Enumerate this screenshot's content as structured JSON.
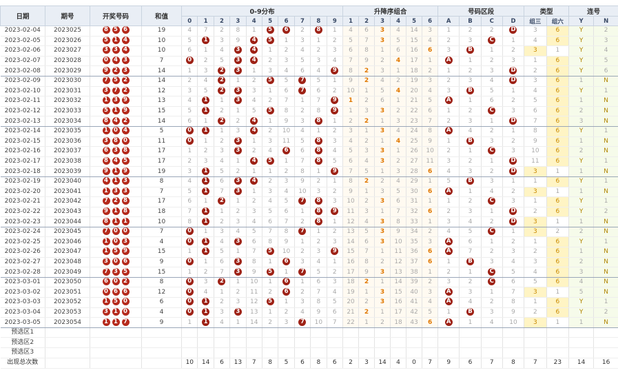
{
  "header": {
    "date": "日期",
    "issue": "期号",
    "balls": "开奖号码",
    "sum": "和值",
    "digits_group": "0-9分布",
    "order_group": "升降序组合",
    "zone_group": "号码区段",
    "type_group": "类型",
    "consec_group": "连号",
    "digit_cols": [
      "0",
      "1",
      "2",
      "3",
      "4",
      "5",
      "6",
      "7",
      "8",
      "9"
    ],
    "order_cols": [
      "1",
      "2",
      "3",
      "4",
      "5",
      "6"
    ],
    "zone_cols": [
      "A",
      "B",
      "C",
      "D"
    ],
    "type_cols": [
      "组三",
      "组六"
    ],
    "consec_cols": [
      "Y",
      "N"
    ]
  },
  "rows": [
    {
      "date": "2023-02-04",
      "issue": "2023025",
      "balls": [
        8,
        5,
        6
      ],
      "sum": 19,
      "digits": [
        4,
        7,
        2,
        8,
        1,
        "5",
        "6",
        2,
        "8",
        1
      ],
      "order": [
        4,
        6,
        "3",
        4,
        14,
        3
      ],
      "zone": [
        1,
        2,
        2,
        "D"
      ],
      "type": [
        3,
        "6"
      ],
      "consec": [
        "Y",
        2
      ]
    },
    {
      "date": "2023-02-05",
      "issue": "2023026",
      "balls": [
        5,
        1,
        4
      ],
      "sum": 10,
      "digits": [
        5,
        "1",
        3,
        9,
        "4",
        "5",
        1,
        3,
        1,
        2
      ],
      "order": [
        5,
        7,
        "3",
        5,
        15,
        4
      ],
      "zone": [
        2,
        3,
        "C",
        1
      ],
      "type": [
        4,
        "6"
      ],
      "consec": [
        "Y",
        3
      ]
    },
    {
      "date": "2023-02-06",
      "issue": "2023027",
      "balls": [
        3,
        3,
        4
      ],
      "sum": 10,
      "digits": [
        6,
        1,
        4,
        "3",
        "4",
        1,
        2,
        4,
        2,
        3
      ],
      "order": [
        6,
        8,
        1,
        6,
        16,
        "6"
      ],
      "zone": [
        3,
        "B",
        1,
        2
      ],
      "type": [
        "3",
        1
      ],
      "consec": [
        "Y",
        4
      ]
    },
    {
      "date": "2023-02-07",
      "issue": "2023028",
      "balls": [
        0,
        4,
        3
      ],
      "sum": 7,
      "digits": [
        "0",
        2,
        5,
        "3",
        "4",
        2,
        3,
        5,
        3,
        4
      ],
      "order": [
        7,
        9,
        2,
        "4",
        17,
        1
      ],
      "zone": [
        "A",
        1,
        2,
        3
      ],
      "type": [
        1,
        "6"
      ],
      "consec": [
        "Y",
        5
      ]
    },
    {
      "date": "2023-02-08",
      "issue": "2023029",
      "balls": [
        9,
        2,
        3
      ],
      "sum": 14,
      "digits": [
        1,
        3,
        "2",
        "3",
        1,
        3,
        4,
        6,
        4,
        "9"
      ],
      "order": [
        8,
        "2",
        3,
        1,
        18,
        2
      ],
      "zone": [
        1,
        2,
        3,
        "D"
      ],
      "type": [
        2,
        "6"
      ],
      "consec": [
        "Y",
        6
      ]
    },
    {
      "date": "2023-02-09",
      "issue": "2023030",
      "balls": [
        7,
        5,
        2
      ],
      "sum": 14,
      "digits": [
        2,
        4,
        "2",
        1,
        2,
        "5",
        5,
        "7",
        5,
        1
      ],
      "order": [
        9,
        "2",
        4,
        2,
        19,
        3
      ],
      "zone": [
        2,
        3,
        4,
        "D"
      ],
      "type": [
        3,
        "6"
      ],
      "consec": [
        1,
        "N"
      ]
    },
    {
      "date": "2023-02-10",
      "issue": "2023031",
      "balls": [
        3,
        7,
        2
      ],
      "sum": 12,
      "digits": [
        3,
        5,
        "2",
        "3",
        3,
        1,
        6,
        "7",
        6,
        2
      ],
      "order": [
        10,
        1,
        5,
        "4",
        20,
        4
      ],
      "zone": [
        3,
        "B",
        5,
        1
      ],
      "type": [
        4,
        "6"
      ],
      "consec": [
        "Y",
        1
      ]
    },
    {
      "date": "2023-02-11",
      "issue": "2023032",
      "balls": [
        1,
        3,
        9
      ],
      "sum": 13,
      "digits": [
        4,
        "1",
        1,
        "3",
        4,
        2,
        7,
        1,
        7,
        "9"
      ],
      "order": [
        "1",
        2,
        6,
        1,
        21,
        5
      ],
      "zone": [
        "A",
        1,
        6,
        2
      ],
      "type": [
        5,
        "6"
      ],
      "consec": [
        1,
        "N"
      ]
    },
    {
      "date": "2023-02-12",
      "issue": "2023033",
      "balls": [
        5,
        1,
        9
      ],
      "sum": 15,
      "digits": [
        5,
        "1",
        2,
        1,
        5,
        "5",
        8,
        2,
        8,
        "9"
      ],
      "order": [
        1,
        3,
        "3",
        2,
        22,
        6
      ],
      "zone": [
        1,
        2,
        "C",
        3
      ],
      "type": [
        6,
        "6"
      ],
      "consec": [
        2,
        "N"
      ]
    },
    {
      "date": "2023-02-13",
      "issue": "2023034",
      "balls": [
        8,
        4,
        2
      ],
      "sum": 14,
      "digits": [
        6,
        1,
        "2",
        2,
        "4",
        1,
        9,
        3,
        "8",
        1
      ],
      "order": [
        2,
        "2",
        1,
        3,
        23,
        7
      ],
      "zone": [
        2,
        3,
        1,
        "D"
      ],
      "type": [
        7,
        "6"
      ],
      "consec": [
        3,
        "N"
      ]
    },
    {
      "date": "2023-02-14",
      "issue": "2023035",
      "balls": [
        1,
        0,
        4
      ],
      "sum": 5,
      "digits": [
        "0",
        "1",
        1,
        3,
        "4",
        2,
        10,
        4,
        1,
        2
      ],
      "order": [
        3,
        1,
        "3",
        4,
        24,
        8
      ],
      "zone": [
        "A",
        4,
        2,
        1
      ],
      "type": [
        8,
        "6"
      ],
      "consec": [
        "Y",
        1
      ]
    },
    {
      "date": "2023-02-15",
      "issue": "2023036",
      "balls": [
        3,
        8,
        0
      ],
      "sum": 11,
      "digits": [
        "0",
        1,
        2,
        "3",
        1,
        3,
        11,
        5,
        "8",
        3
      ],
      "order": [
        4,
        2,
        1,
        "4",
        25,
        9
      ],
      "zone": [
        1,
        "B",
        3,
        2
      ],
      "type": [
        9,
        "6"
      ],
      "consec": [
        1,
        "N"
      ]
    },
    {
      "date": "2023-02-16",
      "issue": "2023037",
      "balls": [
        6,
        3,
        8
      ],
      "sum": 17,
      "digits": [
        1,
        2,
        3,
        "3",
        2,
        4,
        "6",
        6,
        "8",
        4
      ],
      "order": [
        5,
        3,
        "3",
        1,
        26,
        10
      ],
      "zone": [
        2,
        1,
        "C",
        3
      ],
      "type": [
        10,
        "6"
      ],
      "consec": [
        2,
        "N"
      ]
    },
    {
      "date": "2023-02-17",
      "issue": "2023038",
      "balls": [
        8,
        4,
        5
      ],
      "sum": 17,
      "digits": [
        2,
        3,
        4,
        1,
        "4",
        "5",
        1,
        7,
        "8",
        5
      ],
      "order": [
        6,
        4,
        "3",
        2,
        27,
        11
      ],
      "zone": [
        3,
        2,
        1,
        "D"
      ],
      "type": [
        11,
        "6"
      ],
      "consec": [
        "Y",
        1
      ]
    },
    {
      "date": "2023-02-18",
      "issue": "2023039",
      "balls": [
        9,
        1,
        9
      ],
      "sum": 19,
      "digits": [
        3,
        "1",
        5,
        2,
        1,
        1,
        2,
        8,
        1,
        "9"
      ],
      "order": [
        7,
        5,
        1,
        3,
        28,
        "6"
      ],
      "zone": [
        4,
        3,
        2,
        "D"
      ],
      "type": [
        "3",
        1
      ],
      "consec": [
        1,
        "N"
      ]
    },
    {
      "date": "2023-02-19",
      "issue": "2023040",
      "balls": [
        4,
        1,
        3
      ],
      "sum": 8,
      "digits": [
        4,
        "1",
        6,
        "3",
        "4",
        2,
        3,
        9,
        2,
        1
      ],
      "order": [
        8,
        "2",
        2,
        4,
        29,
        1
      ],
      "zone": [
        5,
        "B",
        3,
        1
      ],
      "type": [
        1,
        "6"
      ],
      "consec": [
        "Y",
        1
      ]
    },
    {
      "date": "2023-02-20",
      "issue": "2023041",
      "balls": [
        1,
        3,
        3
      ],
      "sum": 7,
      "digits": [
        5,
        "1",
        7,
        "3",
        1,
        3,
        4,
        10,
        3,
        2
      ],
      "order": [
        9,
        1,
        3,
        5,
        30,
        "6"
      ],
      "zone": [
        "A",
        1,
        4,
        2
      ],
      "type": [
        "3",
        1
      ],
      "consec": [
        1,
        "N"
      ]
    },
    {
      "date": "2023-02-21",
      "issue": "2023042",
      "balls": [
        7,
        2,
        8
      ],
      "sum": 17,
      "digits": [
        6,
        1,
        "2",
        1,
        2,
        4,
        5,
        "7",
        "8",
        3
      ],
      "order": [
        10,
        2,
        "3",
        6,
        31,
        1
      ],
      "zone": [
        1,
        2,
        "C",
        3
      ],
      "type": [
        1,
        "6"
      ],
      "consec": [
        "Y",
        1
      ]
    },
    {
      "date": "2023-02-22",
      "issue": "2023043",
      "balls": [
        9,
        1,
        8
      ],
      "sum": 18,
      "digits": [
        7,
        "1",
        1,
        2,
        3,
        5,
        6,
        1,
        "8",
        "9"
      ],
      "order": [
        11,
        3,
        1,
        7,
        32,
        "6"
      ],
      "zone": [
        2,
        3,
        1,
        "D"
      ],
      "type": [
        2,
        "6"
      ],
      "consec": [
        "Y",
        2
      ]
    },
    {
      "date": "2023-02-23",
      "issue": "2023044",
      "balls": [
        8,
        1,
        1
      ],
      "sum": 10,
      "digits": [
        8,
        "1",
        2,
        3,
        4,
        6,
        7,
        2,
        "8",
        1
      ],
      "order": [
        12,
        4,
        "3",
        8,
        33,
        1
      ],
      "zone": [
        3,
        4,
        2,
        "D"
      ],
      "type": [
        "3",
        1
      ],
      "consec": [
        1,
        "N"
      ]
    },
    {
      "date": "2023-02-24",
      "issue": "2023045",
      "balls": [
        7,
        0,
        0
      ],
      "sum": 7,
      "digits": [
        "0",
        1,
        3,
        4,
        5,
        7,
        8,
        "7",
        1,
        2
      ],
      "order": [
        13,
        5,
        "3",
        9,
        34,
        2
      ],
      "zone": [
        4,
        5,
        "C",
        1
      ],
      "type": [
        "3",
        2
      ],
      "consec": [
        2,
        "N"
      ]
    },
    {
      "date": "2023-02-25",
      "issue": "2023046",
      "balls": [
        1,
        0,
        3
      ],
      "sum": 4,
      "digits": [
        "0",
        "1",
        4,
        "3",
        6,
        8,
        9,
        1,
        2,
        3
      ],
      "order": [
        14,
        6,
        "3",
        10,
        35,
        3
      ],
      "zone": [
        "A",
        6,
        1,
        2
      ],
      "type": [
        1,
        "6"
      ],
      "consec": [
        "Y",
        1
      ]
    },
    {
      "date": "2023-02-26",
      "issue": "2023047",
      "balls": [
        1,
        5,
        9
      ],
      "sum": 15,
      "digits": [
        1,
        "1",
        5,
        1,
        7,
        "5",
        10,
        2,
        3,
        "9"
      ],
      "order": [
        15,
        7,
        1,
        11,
        36,
        "6"
      ],
      "zone": [
        "A",
        7,
        2,
        3
      ],
      "type": [
        2,
        "6"
      ],
      "consec": [
        1,
        "N"
      ]
    },
    {
      "date": "2023-02-27",
      "issue": "2023048",
      "balls": [
        3,
        0,
        6
      ],
      "sum": 9,
      "digits": [
        "0",
        1,
        6,
        "3",
        8,
        1,
        "6",
        3,
        4,
        1
      ],
      "order": [
        16,
        8,
        2,
        12,
        37,
        "6"
      ],
      "zone": [
        1,
        "B",
        3,
        4
      ],
      "type": [
        3,
        "6"
      ],
      "consec": [
        2,
        "N"
      ]
    },
    {
      "date": "2023-02-28",
      "issue": "2023049",
      "balls": [
        7,
        3,
        5
      ],
      "sum": 15,
      "digits": [
        1,
        2,
        7,
        "3",
        9,
        "5",
        1,
        "7",
        5,
        2
      ],
      "order": [
        17,
        9,
        "3",
        13,
        38,
        1
      ],
      "zone": [
        2,
        1,
        "C",
        5
      ],
      "type": [
        4,
        "6"
      ],
      "consec": [
        3,
        "N"
      ]
    },
    {
      "date": "2023-03-01",
      "issue": "2023050",
      "balls": [
        6,
        0,
        2
      ],
      "sum": 8,
      "digits": [
        "0",
        3,
        "2",
        1,
        10,
        1,
        "6",
        1,
        6,
        3
      ],
      "order": [
        18,
        "2",
        1,
        14,
        39,
        2
      ],
      "zone": [
        3,
        2,
        "C",
        6
      ],
      "type": [
        5,
        "6"
      ],
      "consec": [
        4,
        "N"
      ]
    },
    {
      "date": "2023-03-02",
      "issue": "2023051",
      "balls": [
        0,
        6,
        6
      ],
      "sum": 12,
      "digits": [
        "0",
        4,
        1,
        2,
        11,
        2,
        "6",
        2,
        7,
        4
      ],
      "order": [
        19,
        1,
        "3",
        15,
        40,
        3
      ],
      "zone": [
        "A",
        3,
        1,
        7
      ],
      "type": [
        "3",
        1
      ],
      "consec": [
        5,
        "N"
      ]
    },
    {
      "date": "2023-03-03",
      "issue": "2023052",
      "balls": [
        1,
        5,
        0
      ],
      "sum": 6,
      "digits": [
        "0",
        "1",
        2,
        3,
        12,
        "5",
        1,
        3,
        8,
        5
      ],
      "order": [
        20,
        2,
        "3",
        16,
        41,
        4
      ],
      "zone": [
        "A",
        4,
        2,
        8
      ],
      "type": [
        1,
        "6"
      ],
      "consec": [
        "Y",
        1
      ]
    },
    {
      "date": "2023-03-04",
      "issue": "2023053",
      "balls": [
        3,
        1,
        0
      ],
      "sum": 4,
      "digits": [
        "0",
        "1",
        3,
        "3",
        13,
        1,
        2,
        4,
        9,
        6
      ],
      "order": [
        21,
        "2",
        1,
        17,
        42,
        5
      ],
      "zone": [
        1,
        "B",
        3,
        9
      ],
      "type": [
        2,
        "6"
      ],
      "consec": [
        "Y",
        2
      ]
    },
    {
      "date": "2023-03-05",
      "issue": "2023054",
      "balls": [
        1,
        1,
        7
      ],
      "sum": 9,
      "digits": [
        1,
        "1",
        4,
        1,
        14,
        2,
        3,
        "7",
        10,
        7
      ],
      "order": [
        22,
        1,
        2,
        18,
        43,
        "6"
      ],
      "zone": [
        "A",
        1,
        4,
        10
      ],
      "type": [
        "3",
        1
      ],
      "consec": [
        1,
        "N"
      ]
    }
  ],
  "preselect": [
    "预选区1",
    "预选区2",
    "预选区3"
  ],
  "totals": {
    "label": "出现总次数",
    "digits": [
      10,
      14,
      6,
      13,
      7,
      8,
      5,
      6,
      8,
      6
    ],
    "order": [
      2,
      3,
      14,
      4,
      0,
      7
    ],
    "zone": [
      9,
      6,
      7,
      8
    ],
    "type": [
      7,
      23
    ],
    "consec": [
      14,
      16
    ]
  }
}
